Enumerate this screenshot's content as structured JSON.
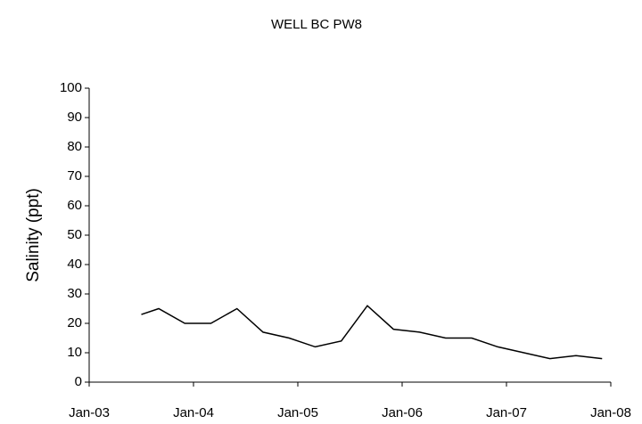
{
  "chart_data": {
    "type": "line",
    "title": "WELL BC PW8",
    "y_label": "Salinity (ppt)",
    "x": [
      "2003-07",
      "2003-09",
      "2003-12",
      "2004-03",
      "2004-06",
      "2004-09",
      "2004-12",
      "2005-03",
      "2005-06",
      "2005-09",
      "2005-12",
      "2006-03",
      "2006-06",
      "2006-09",
      "2006-12",
      "2007-03",
      "2007-06",
      "2007-09",
      "2007-12"
    ],
    "series": [
      {
        "name": "WELL BC PW8",
        "color": "#000000",
        "values": [
          23,
          25,
          20,
          20,
          25,
          17,
          15,
          12,
          14,
          26,
          18,
          17,
          15,
          15,
          12,
          10,
          8,
          9,
          8
        ]
      }
    ],
    "xlim": [
      "2003-01",
      "2008-01"
    ],
    "xticks": [
      {
        "value": "2003-01",
        "label": "Jan-03"
      },
      {
        "value": "2004-01",
        "label": "Jan-04"
      },
      {
        "value": "2005-01",
        "label": "Jan-05"
      },
      {
        "value": "2006-01",
        "label": "Jan-06"
      },
      {
        "value": "2007-01",
        "label": "Jan-07"
      },
      {
        "value": "2008-01",
        "label": "Jan-08"
      }
    ],
    "ylim": [
      0,
      100
    ],
    "yticks": [
      0,
      10,
      20,
      30,
      40,
      50,
      60,
      70,
      80,
      90,
      100
    ],
    "grid": false
  }
}
